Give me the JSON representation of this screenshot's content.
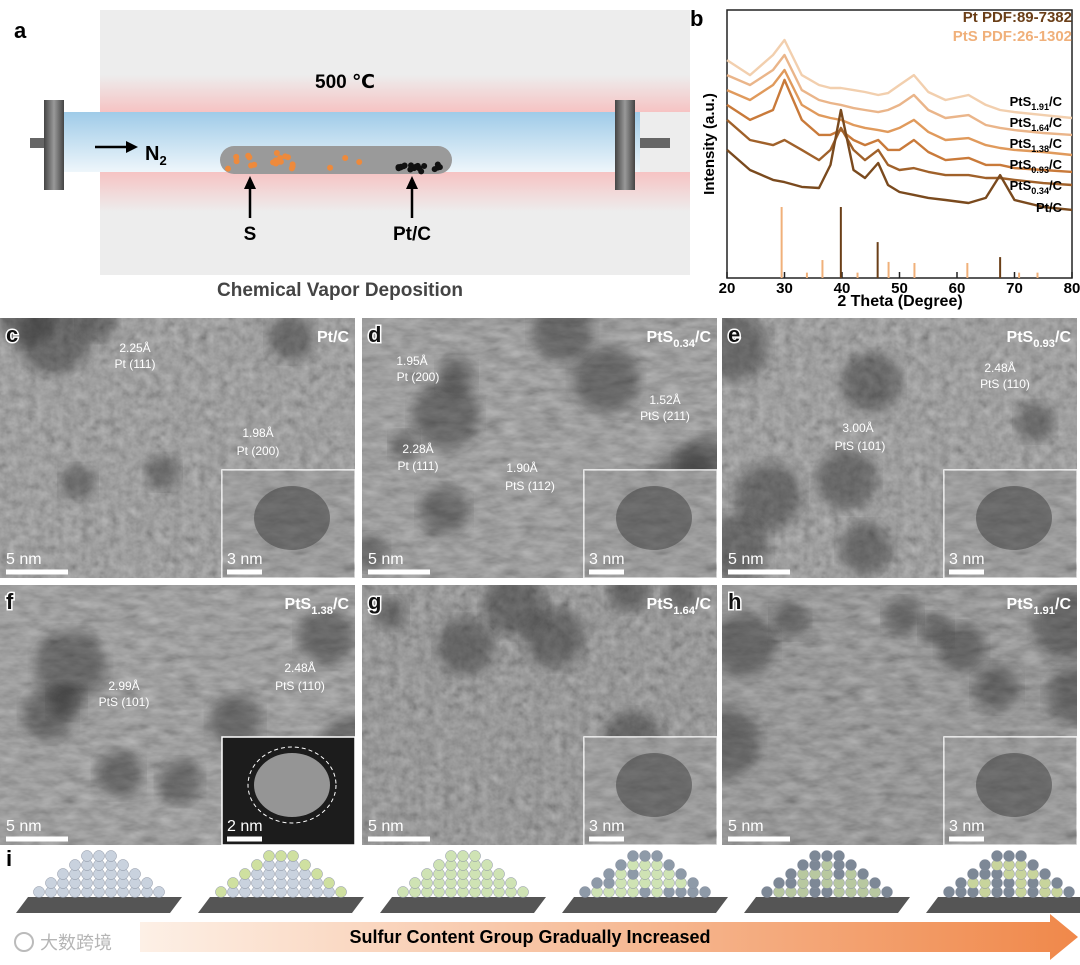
{
  "panel_a": {
    "letter": "a",
    "temperature": "500 ℃",
    "gas": {
      "base": "N",
      "sub": "2"
    },
    "source": "S",
    "target": "Pt/C",
    "caption": "Chemical Vapor Deposition"
  },
  "chart_data": {
    "type": "line",
    "letter": "b",
    "x_label": "2 Theta (Degree)",
    "y_label": "Intensity (a.u.)",
    "xlim": [
      20,
      80
    ],
    "xticks": [
      20,
      30,
      40,
      50,
      60,
      70,
      80
    ],
    "ylim": [
      0,
      100
    ],
    "x": [
      20,
      24,
      28,
      30,
      33,
      36,
      38,
      39.8,
      42,
      44,
      46.3,
      48,
      50,
      52.5,
      55,
      58,
      62,
      65,
      67.5,
      70,
      75,
      80
    ],
    "series": [
      {
        "label": {
          "base": "PtS",
          "sub": "1.91",
          "suffix": "/C"
        },
        "color": "#f2cfae",
        "values": [
          81.3,
          75.7,
          83.2,
          88.8,
          75.7,
          72.0,
          70.9,
          70.9,
          70.1,
          69.4,
          68.3,
          69.0,
          72.0,
          75.7,
          69.4,
          66.4,
          68.3,
          64.6,
          62.7,
          61.9,
          60.8,
          59.7
        ]
      },
      {
        "label": {
          "base": "PtS",
          "sub": "1.64",
          "suffix": "/C"
        },
        "color": "#eab58a",
        "values": [
          75.7,
          72.0,
          77.6,
          83.2,
          70.1,
          66.4,
          65.3,
          64.6,
          63.4,
          62.7,
          61.9,
          62.7,
          64.6,
          68.3,
          62.7,
          59.7,
          60.8,
          57.1,
          56.0,
          55.2,
          54.1,
          53.4
        ]
      },
      {
        "label": {
          "base": "PtS",
          "sub": "1.38",
          "suffix": "/C"
        },
        "color": "#e09a5c",
        "values": [
          70.1,
          66.4,
          72.0,
          77.6,
          64.6,
          60.8,
          59.7,
          59.0,
          57.1,
          56.0,
          55.2,
          54.5,
          56.0,
          59.0,
          54.5,
          51.5,
          52.2,
          49.6,
          48.5,
          47.8,
          47.0,
          45.9
        ]
      },
      {
        "label": {
          "base": "PtS",
          "sub": "0.93",
          "suffix": "/C"
        },
        "color": "#c97a3a",
        "values": [
          64.6,
          59.0,
          62.7,
          73.9,
          59.0,
          53.4,
          53.4,
          55.2,
          51.5,
          49.6,
          51.5,
          47.8,
          47.8,
          51.5,
          47.0,
          44.0,
          44.8,
          42.2,
          42.2,
          41.0,
          40.3,
          39.6
        ]
      },
      {
        "label": {
          "base": "PtS",
          "sub": "0.34",
          "suffix": "/C"
        },
        "color": "#a0612a",
        "values": [
          59.0,
          51.5,
          49.6,
          51.5,
          47.8,
          44.0,
          47.8,
          56.0,
          47.8,
          44.0,
          47.8,
          42.2,
          40.3,
          41.0,
          39.6,
          38.4,
          38.4,
          37.3,
          37.3,
          36.6,
          35.4,
          34.7
        ]
      },
      {
        "label": {
          "base": "Pt/C"
        },
        "color": "#7a4a1e",
        "values": [
          47.8,
          40.3,
          36.6,
          35.8,
          34.0,
          33.6,
          42.2,
          62.7,
          40.3,
          37.3,
          42.9,
          34.7,
          32.1,
          31.0,
          29.9,
          29.1,
          28.0,
          29.9,
          38.4,
          29.1,
          26.5,
          25.4
        ]
      }
    ],
    "references": [
      {
        "name": "Pt PDF:89-7382",
        "color": "#6b3f18",
        "x": [
          39.8,
          46.2,
          67.5
        ],
        "values": [
          26.5,
          13.4,
          7.8
        ]
      },
      {
        "name": "PtS PDF:26-1302",
        "color": "#f0b07a",
        "x": [
          29.5,
          33.9,
          36.6,
          42.7,
          48.1,
          52.6,
          61.8,
          70.8,
          74
        ],
        "values": [
          26.5,
          2,
          6.7,
          2,
          6,
          5.6,
          5.6,
          2,
          2
        ]
      }
    ]
  },
  "tem_panels": [
    {
      "letter": "c",
      "label": {
        "base": "Pt/C"
      },
      "notes": [
        "2.25Å",
        "Pt (111)",
        "1.98Å",
        "Pt (200)"
      ],
      "scale": "5 nm",
      "inset_scale": "3 nm"
    },
    {
      "letter": "d",
      "label": {
        "base": "PtS",
        "sub": "0.34",
        "suffix": "/C"
      },
      "notes": [
        "1.95Å",
        "Pt (200)",
        "1.52Å",
        "PtS (211)",
        "2.28Å",
        "Pt (111)",
        "1.90Å",
        "PtS (112)"
      ],
      "scale": "5 nm",
      "inset_scale": "3 nm"
    },
    {
      "letter": "e",
      "label": {
        "base": "PtS",
        "sub": "0.93",
        "suffix": "/C"
      },
      "notes": [
        "2.48Å",
        "PtS (110)",
        "3.00Å",
        "PtS (101)"
      ],
      "scale": "5 nm",
      "inset_scale": "3 nm"
    },
    {
      "letter": "f",
      "label": {
        "base": "PtS",
        "sub": "1.38",
        "suffix": "/C"
      },
      "notes": [
        "2.99Å",
        "PtS (101)",
        "2.48Å",
        "PtS (110)"
      ],
      "scale": "5 nm",
      "inset_scale": "2 nm"
    },
    {
      "letter": "g",
      "label": {
        "base": "PtS",
        "sub": "1.64",
        "suffix": "/C"
      },
      "scale": "5 nm",
      "inset_scale": "3 nm"
    },
    {
      "letter": "h",
      "label": {
        "base": "PtS",
        "sub": "1.91",
        "suffix": "/C"
      },
      "scale": "5 nm",
      "inset_scale": "3 nm"
    }
  ],
  "panel_i": {
    "letter": "i",
    "caption": "Sulfur Content Group Gradually Increased"
  },
  "watermark": "大数跨境"
}
